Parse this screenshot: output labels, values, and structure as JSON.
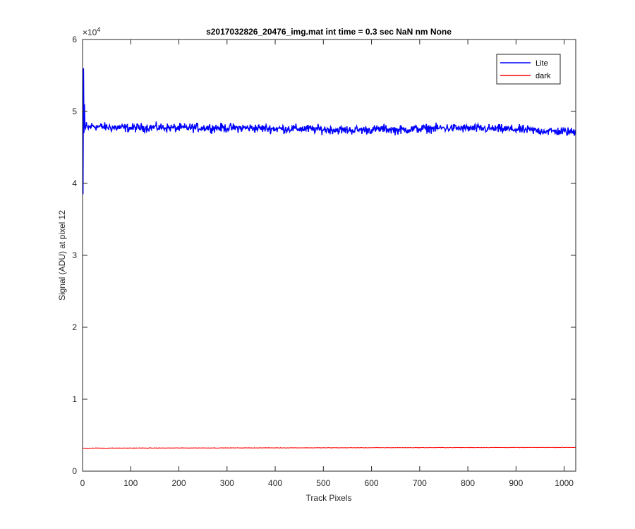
{
  "chart_data": {
    "type": "line",
    "title": "s2017032826_20476_img.mat int time = 0.3 sec  NaN nm None",
    "xlabel": "Track Pixels",
    "ylabel": "Signal (ADU) at pixel 12",
    "xlim": [
      0,
      1024
    ],
    "ylim": [
      0,
      60000
    ],
    "y_exponent_label": "×10",
    "y_exponent_power": "4",
    "xticks": [
      0,
      100,
      200,
      300,
      400,
      500,
      600,
      700,
      800,
      900,
      1000
    ],
    "yticks": [
      0,
      10000,
      20000,
      30000,
      40000,
      50000,
      60000
    ],
    "ytick_labels": [
      "0",
      "1",
      "2",
      "3",
      "4",
      "5",
      "6"
    ],
    "grid": false,
    "legend_position": "top-right",
    "series": [
      {
        "name": "Lite",
        "color": "#0000ff",
        "x": [
          1,
          2,
          3,
          4,
          5,
          6,
          8,
          10,
          15,
          20,
          30,
          50,
          100,
          150,
          200,
          250,
          300,
          350,
          400,
          450,
          500,
          550,
          600,
          627,
          650,
          700,
          750,
          800,
          850,
          900,
          950,
          1000,
          1024
        ],
        "y": [
          38500,
          56000,
          47000,
          51000,
          47800,
          47600,
          48000,
          47700,
          47800,
          48000,
          47900,
          47800,
          47700,
          47800,
          47700,
          47750,
          47700,
          47700,
          47600,
          47600,
          47500,
          47400,
          47450,
          47600,
          47400,
          47600,
          47700,
          47650,
          47600,
          47500,
          47300,
          47200,
          47100
        ],
        "noise_amplitude": 450
      },
      {
        "name": "dark",
        "color": "#ff0000",
        "x": [
          1,
          1024
        ],
        "y": [
          3200,
          3300
        ],
        "noise_amplitude": 25
      }
    ]
  }
}
